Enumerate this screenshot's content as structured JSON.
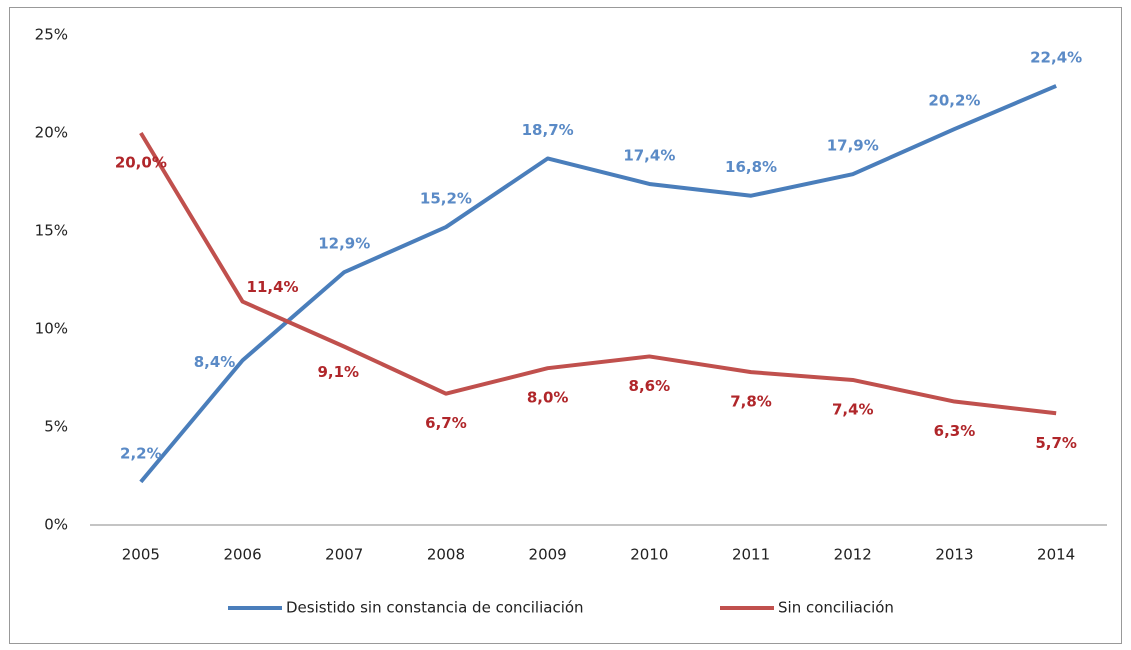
{
  "chart_data": {
    "type": "line",
    "categories": [
      "2005",
      "2006",
      "2007",
      "2008",
      "2009",
      "2010",
      "2011",
      "2012",
      "2013",
      "2014"
    ],
    "series": [
      {
        "name": "Desistido sin constancia de conciliación",
        "color": "#4a7ebb",
        "label_color": "#5a8ac6",
        "values": [
          2.2,
          8.4,
          12.9,
          15.2,
          18.7,
          17.4,
          16.8,
          17.9,
          20.2,
          22.4
        ],
        "value_labels": [
          "2,2%",
          "8,4%",
          "12,9%",
          "15,2%",
          "18,7%",
          "17,4%",
          "16,8%",
          "17,9%",
          "20,2%",
          "22,4%"
        ]
      },
      {
        "name": "Sin conciliación",
        "color": "#c0504d",
        "label_color": "#b0262a",
        "values": [
          20.0,
          11.4,
          9.1,
          6.7,
          8.0,
          8.6,
          7.8,
          7.4,
          6.3,
          5.7
        ],
        "value_labels": [
          "20,0%",
          "11,4%",
          "9,1%",
          "6,7%",
          "8,0%",
          "8,6%",
          "7,8%",
          "7,4%",
          "6,3%",
          "5,7%"
        ]
      }
    ],
    "ylim": [
      0,
      25
    ],
    "yticks": [
      {
        "value": 0,
        "label": "0%"
      },
      {
        "value": 5,
        "label": "5%"
      },
      {
        "value": 10,
        "label": "10%"
      },
      {
        "value": 15,
        "label": "15%"
      },
      {
        "value": 20,
        "label": "20%"
      },
      {
        "value": 25,
        "label": "25%"
      }
    ],
    "grid": false,
    "legend": "bottom"
  }
}
